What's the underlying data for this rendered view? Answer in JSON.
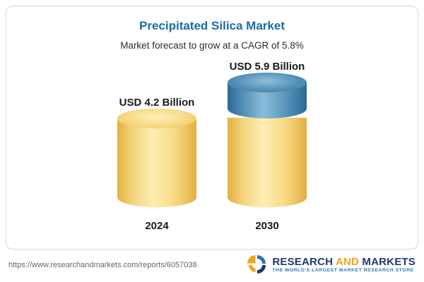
{
  "chart_data": {
    "type": "bar",
    "subtype": "3d-cylinder",
    "title": "Precipitated Silica Market",
    "subtitle": "Market forecast to grow at a CAGR of 5.8%",
    "cagr_percent": 5.8,
    "unit": "USD Billion",
    "categories": [
      "2024",
      "2030"
    ],
    "values": [
      4.2,
      5.9
    ],
    "value_labels": [
      "USD 4.2 Billion",
      "USD 5.9 Billion"
    ],
    "series_note": "2030 bar shows base value in yellow and growth increment above 4.2 in blue",
    "colors": {
      "base_segment": "#f2d279",
      "growth_segment": "#4f8cb4",
      "title_accent": "#1a6ca6"
    },
    "legend_position": "none",
    "grid": false
  },
  "footer": {
    "url": "https://www.researchandmarkets.com/reports/6057038",
    "logo": {
      "research": "RESEARCH",
      "and": "AND",
      "markets": "MARKETS",
      "tagline": "THE WORLD'S LARGEST MARKET RESEARCH STORE"
    }
  }
}
